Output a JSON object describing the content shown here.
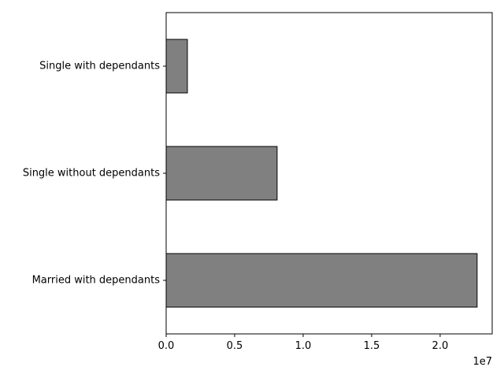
{
  "chart_data": {
    "type": "bar",
    "orientation": "horizontal",
    "categories": [
      "Married with dependants",
      "Single without dependants",
      "Single with dependants"
    ],
    "values": [
      22700000,
      8100000,
      1550000
    ],
    "xlim": [
      0,
      23800000
    ],
    "xticks": [
      0,
      5000000,
      10000000,
      15000000,
      20000000
    ],
    "xtick_labels": [
      "0.0",
      "0.5",
      "1.0",
      "1.5",
      "2.0"
    ],
    "x_offset_label": "1e7",
    "bar_color": "#808080",
    "edge_color": "#000000",
    "title": "",
    "xlabel": "",
    "ylabel": "",
    "grid": false,
    "legend": "none"
  }
}
